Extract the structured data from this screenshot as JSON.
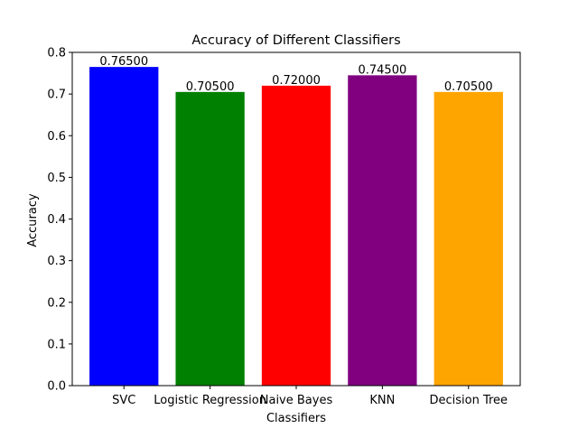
{
  "chart_data": {
    "type": "bar",
    "title": "Accuracy of Different Classifiers",
    "xlabel": "Classifiers",
    "ylabel": "Accuracy",
    "ylim": [
      0,
      0.8
    ],
    "yticks": [
      "0.0",
      "0.1",
      "0.2",
      "0.3",
      "0.4",
      "0.5",
      "0.6",
      "0.7",
      "0.8"
    ],
    "categories": [
      "SVC",
      "Logistic Regression",
      "Naive Bayes",
      "KNN",
      "Decision Tree"
    ],
    "values": [
      0.765,
      0.705,
      0.72,
      0.745,
      0.705
    ],
    "value_labels": [
      "0.76500",
      "0.70500",
      "0.72000",
      "0.74500",
      "0.70500"
    ],
    "colors": [
      "#0000ff",
      "#008000",
      "#ff0000",
      "#800080",
      "#ffa500"
    ],
    "grid": false,
    "legend": "none"
  }
}
